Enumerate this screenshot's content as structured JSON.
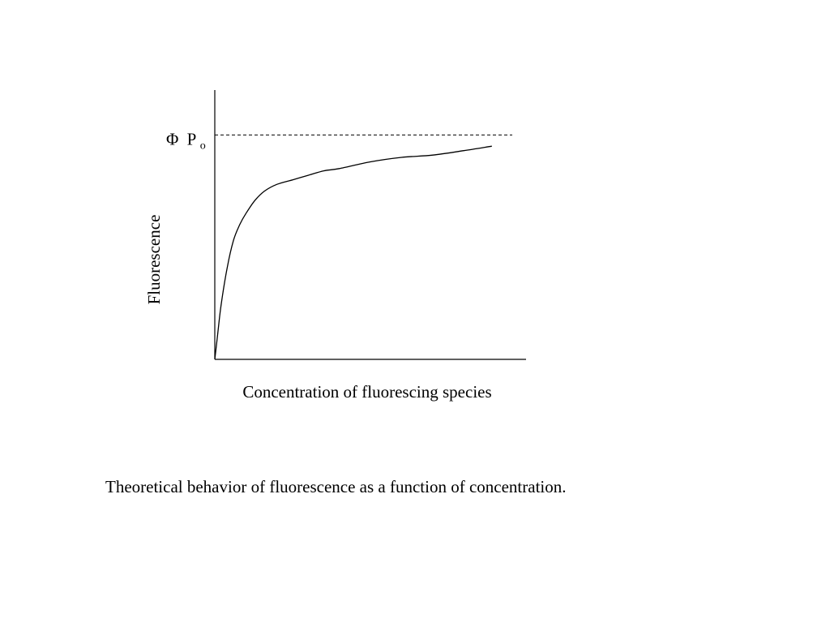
{
  "chart_data": {
    "type": "line",
    "xlabel": "Concentration of fluorescing species",
    "ylabel": "Fluorescence",
    "reference_line": {
      "label_symbol": "Φ",
      "label_main": "P",
      "label_sub": "o",
      "style": "dashed",
      "y": 1.0
    },
    "xlim": [
      0,
      1
    ],
    "ylim": [
      0,
      1.2
    ],
    "ticks": "none",
    "grid": false,
    "legend": "none",
    "series": [
      {
        "x": [
          0.0,
          0.01,
          0.02,
          0.04,
          0.06,
          0.08,
          0.1,
          0.13,
          0.16,
          0.2,
          0.25,
          0.3,
          0.35,
          0.4,
          0.5,
          0.6,
          0.7,
          0.8,
          0.89
        ],
        "y": [
          0.0,
          0.12,
          0.24,
          0.41,
          0.53,
          0.6,
          0.65,
          0.71,
          0.75,
          0.78,
          0.8,
          0.82,
          0.84,
          0.85,
          0.88,
          0.9,
          0.91,
          0.93,
          0.95
        ],
        "color": "#000000"
      }
    ]
  },
  "caption": "Theoretical behavior of fluorescence as a function of concentration."
}
